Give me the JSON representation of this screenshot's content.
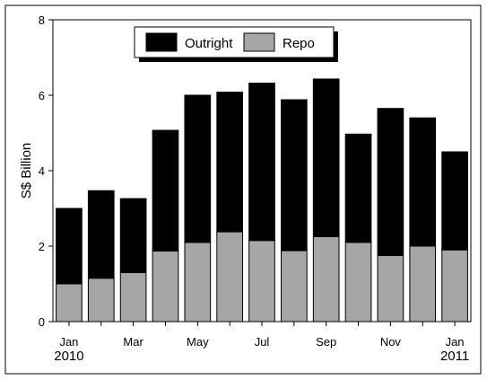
{
  "chart_data": {
    "type": "bar",
    "stacked": true,
    "ylabel": "S$ Billion",
    "xlabel": "",
    "title": "",
    "ylim": [
      0,
      8
    ],
    "yticks": [
      0,
      2,
      4,
      6,
      8
    ],
    "grid": false,
    "legend_position": "top-center",
    "categories": [
      "Jan 2010",
      "Feb 2010",
      "Mar 2010",
      "Apr 2010",
      "May 2010",
      "Jun 2010",
      "Jul 2010",
      "Aug 2010",
      "Sep 2010",
      "Oct 2010",
      "Nov 2010",
      "Dec 2010",
      "Jan 2011"
    ],
    "xtick_labels": [
      {
        "index": 0,
        "lines": [
          "Jan",
          "2010"
        ]
      },
      {
        "index": 2,
        "lines": [
          "Mar"
        ]
      },
      {
        "index": 4,
        "lines": [
          "May"
        ]
      },
      {
        "index": 6,
        "lines": [
          "Jul"
        ]
      },
      {
        "index": 8,
        "lines": [
          "Sep"
        ]
      },
      {
        "index": 10,
        "lines": [
          "Nov"
        ]
      },
      {
        "index": 12,
        "lines": [
          "Jan",
          "2011"
        ]
      }
    ],
    "series": [
      {
        "name": "Repo",
        "color": "#a6a6a6",
        "values": [
          1.0,
          1.15,
          1.3,
          1.87,
          2.1,
          2.38,
          2.15,
          1.88,
          2.25,
          2.1,
          1.75,
          2.0,
          1.9
        ]
      },
      {
        "name": "Outright",
        "color": "#000000",
        "values": [
          2.0,
          2.32,
          1.96,
          3.2,
          3.9,
          3.7,
          4.17,
          4.0,
          4.18,
          2.87,
          3.9,
          3.4,
          2.6
        ]
      }
    ],
    "legend_order": [
      "Outright",
      "Repo"
    ]
  }
}
